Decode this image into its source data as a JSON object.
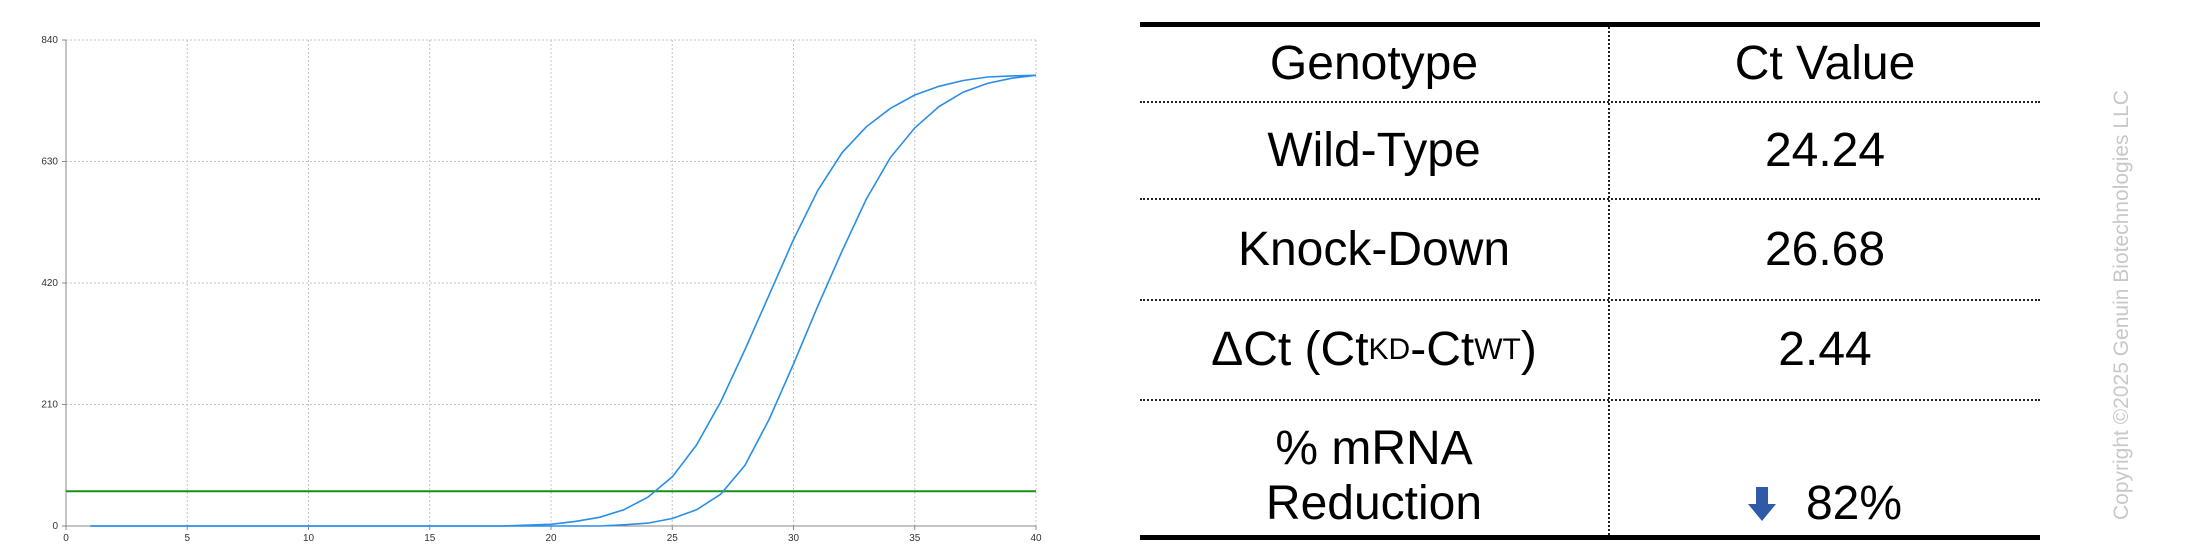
{
  "chart_data": {
    "type": "line",
    "x_ticks": [
      0,
      5,
      10,
      15,
      20,
      25,
      30,
      35,
      40
    ],
    "y_ticks": [
      0,
      210,
      420,
      630,
      840
    ],
    "xlim": [
      0,
      40
    ],
    "ylim": [
      0,
      840
    ],
    "grid": true,
    "threshold": 60,
    "series": [
      {
        "color": "#2a8ee8",
        "x": [
          1,
          18,
          20,
          21,
          22,
          23,
          24,
          25,
          26,
          27,
          28,
          29,
          30,
          31,
          32,
          33,
          34,
          35,
          36,
          37,
          38,
          39,
          40
        ],
        "values": [
          0,
          0,
          3,
          8,
          15,
          28,
          50,
          85,
          140,
          215,
          305,
          400,
          495,
          580,
          645,
          690,
          722,
          745,
          760,
          770,
          776,
          778,
          779
        ]
      },
      {
        "color": "#2a8ee8",
        "x": [
          1,
          22,
          23,
          24,
          25,
          26,
          27,
          28,
          29,
          30,
          31,
          32,
          33,
          34,
          35,
          36,
          37,
          38,
          39,
          40
        ],
        "values": [
          0,
          0,
          2,
          5,
          13,
          28,
          55,
          105,
          185,
          280,
          380,
          475,
          565,
          637,
          688,
          725,
          750,
          765,
          774,
          779
        ]
      }
    ],
    "threshold_color": "#169116"
  },
  "table": {
    "headers": [
      "Genotype",
      "Ct Value"
    ],
    "rows": [
      {
        "label": "Wild-Type",
        "value": "24.24"
      },
      {
        "label": "Knock-Down",
        "value": "26.68"
      },
      {
        "label_main": "ΔCt (Ct",
        "label_sub1": "KD",
        "label_mid": "-Ct",
        "label_sub2": "WT",
        "label_end": ")",
        "value": "2.44"
      },
      {
        "label_line1": "% mRNA",
        "label_line2": "Reduction",
        "value": "82%",
        "icon": "down-arrow-icon",
        "icon_color": "#2e5aa8"
      }
    ]
  },
  "copyright": "Copyright ©2025 Genuin Biotechnologies LLC"
}
